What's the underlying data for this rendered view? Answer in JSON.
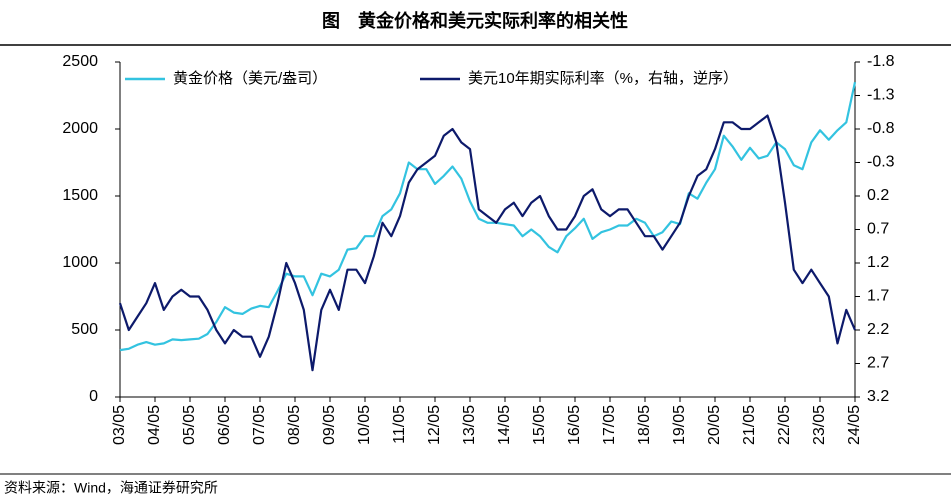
{
  "chart_data": {
    "type": "line",
    "title": "图　黄金价格和美元实际利率的相关性",
    "source": "资料来源：Wind，海通证券研究所",
    "x": [
      2003.33,
      2003.58,
      2003.83,
      2004.08,
      2004.33,
      2004.58,
      2004.83,
      2005.08,
      2005.33,
      2005.58,
      2005.83,
      2006.08,
      2006.33,
      2006.58,
      2006.83,
      2007.08,
      2007.33,
      2007.58,
      2007.83,
      2008.08,
      2008.33,
      2008.58,
      2008.83,
      2009.08,
      2009.33,
      2009.58,
      2009.83,
      2010.08,
      2010.33,
      2010.58,
      2010.83,
      2011.08,
      2011.33,
      2011.58,
      2011.83,
      2012.08,
      2012.33,
      2012.58,
      2012.83,
      2013.08,
      2013.33,
      2013.58,
      2013.83,
      2014.08,
      2014.33,
      2014.58,
      2014.83,
      2015.08,
      2015.33,
      2015.58,
      2015.83,
      2016.08,
      2016.33,
      2016.58,
      2016.83,
      2017.08,
      2017.33,
      2017.58,
      2017.83,
      2018.08,
      2018.33,
      2018.58,
      2018.83,
      2019.08,
      2019.33,
      2019.58,
      2019.83,
      2020.08,
      2020.33,
      2020.58,
      2020.83,
      2021.08,
      2021.33,
      2021.58,
      2021.83,
      2022.08,
      2022.33,
      2022.58,
      2022.83,
      2023.08,
      2023.33,
      2023.58,
      2023.83,
      2024.08,
      2024.33
    ],
    "series": [
      {
        "name": "黄金价格（美元/盎司）",
        "color": "#33c3e0",
        "axis": "y",
        "values": [
          350,
          360,
          390,
          410,
          390,
          400,
          430,
          425,
          430,
          435,
          470,
          560,
          670,
          630,
          620,
          660,
          680,
          670,
          790,
          920,
          900,
          900,
          760,
          920,
          900,
          950,
          1100,
          1110,
          1200,
          1200,
          1350,
          1400,
          1520,
          1750,
          1700,
          1700,
          1590,
          1650,
          1720,
          1630,
          1460,
          1330,
          1300,
          1300,
          1290,
          1280,
          1200,
          1250,
          1200,
          1120,
          1080,
          1200,
          1260,
          1330,
          1180,
          1230,
          1250,
          1280,
          1280,
          1330,
          1300,
          1200,
          1230,
          1310,
          1290,
          1520,
          1480,
          1600,
          1700,
          1950,
          1870,
          1770,
          1860,
          1780,
          1800,
          1900,
          1850,
          1730,
          1700,
          1900,
          1990,
          1920,
          1990,
          2050,
          2350
        ]
      },
      {
        "name": "美元10年期实际利率（%，右轴，逆序）",
        "color": "#0d1a6b",
        "axis": "y2",
        "values": [
          1.8,
          2.2,
          2.0,
          1.8,
          1.5,
          1.9,
          1.7,
          1.6,
          1.7,
          1.7,
          1.9,
          2.2,
          2.4,
          2.2,
          2.3,
          2.3,
          2.6,
          2.3,
          1.8,
          1.2,
          1.5,
          1.9,
          2.8,
          1.9,
          1.6,
          1.9,
          1.3,
          1.3,
          1.5,
          1.1,
          0.6,
          0.8,
          0.5,
          0.0,
          -0.2,
          -0.3,
          -0.4,
          -0.7,
          -0.8,
          -0.6,
          -0.5,
          0.4,
          0.5,
          0.6,
          0.4,
          0.3,
          0.5,
          0.3,
          0.2,
          0.5,
          0.7,
          0.7,
          0.5,
          0.2,
          0.1,
          0.4,
          0.5,
          0.4,
          0.4,
          0.6,
          0.8,
          0.8,
          1.0,
          0.8,
          0.6,
          0.2,
          -0.1,
          -0.2,
          -0.5,
          -0.9,
          -0.9,
          -0.8,
          -0.8,
          -0.9,
          -1.0,
          -0.6,
          0.3,
          1.3,
          1.5,
          1.3,
          1.5,
          1.7,
          2.4,
          1.9,
          2.2
        ]
      }
    ],
    "xlim": [
      2003.33,
      2024.33
    ],
    "xticks": [
      {
        "value": 2003.33,
        "label": "03/05"
      },
      {
        "value": 2004.33,
        "label": "04/05"
      },
      {
        "value": 2005.33,
        "label": "05/05"
      },
      {
        "value": 2006.33,
        "label": "06/05"
      },
      {
        "value": 2007.33,
        "label": "07/05"
      },
      {
        "value": 2008.33,
        "label": "08/05"
      },
      {
        "value": 2009.33,
        "label": "09/05"
      },
      {
        "value": 2010.33,
        "label": "10/05"
      },
      {
        "value": 2011.33,
        "label": "11/05"
      },
      {
        "value": 2012.33,
        "label": "12/05"
      },
      {
        "value": 2013.33,
        "label": "13/05"
      },
      {
        "value": 2014.33,
        "label": "14/05"
      },
      {
        "value": 2015.33,
        "label": "15/05"
      },
      {
        "value": 2016.33,
        "label": "16/05"
      },
      {
        "value": 2017.33,
        "label": "17/05"
      },
      {
        "value": 2018.33,
        "label": "18/05"
      },
      {
        "value": 2019.33,
        "label": "19/05"
      },
      {
        "value": 2020.33,
        "label": "20/05"
      },
      {
        "value": 2021.33,
        "label": "21/05"
      },
      {
        "value": 2022.33,
        "label": "22/05"
      },
      {
        "value": 2023.33,
        "label": "23/05"
      },
      {
        "value": 2024.33,
        "label": "24/05"
      }
    ],
    "ylim": [
      0,
      2500
    ],
    "yticks": [
      0,
      500,
      1000,
      1500,
      2000,
      2500
    ],
    "y2lim": [
      -1.8,
      3.2
    ],
    "y2ticks": [
      -1.8,
      -1.3,
      -0.8,
      -0.3,
      0.2,
      0.7,
      1.2,
      1.7,
      2.2,
      2.7,
      3.2
    ],
    "y2_inverted": true,
    "legend": "top"
  }
}
